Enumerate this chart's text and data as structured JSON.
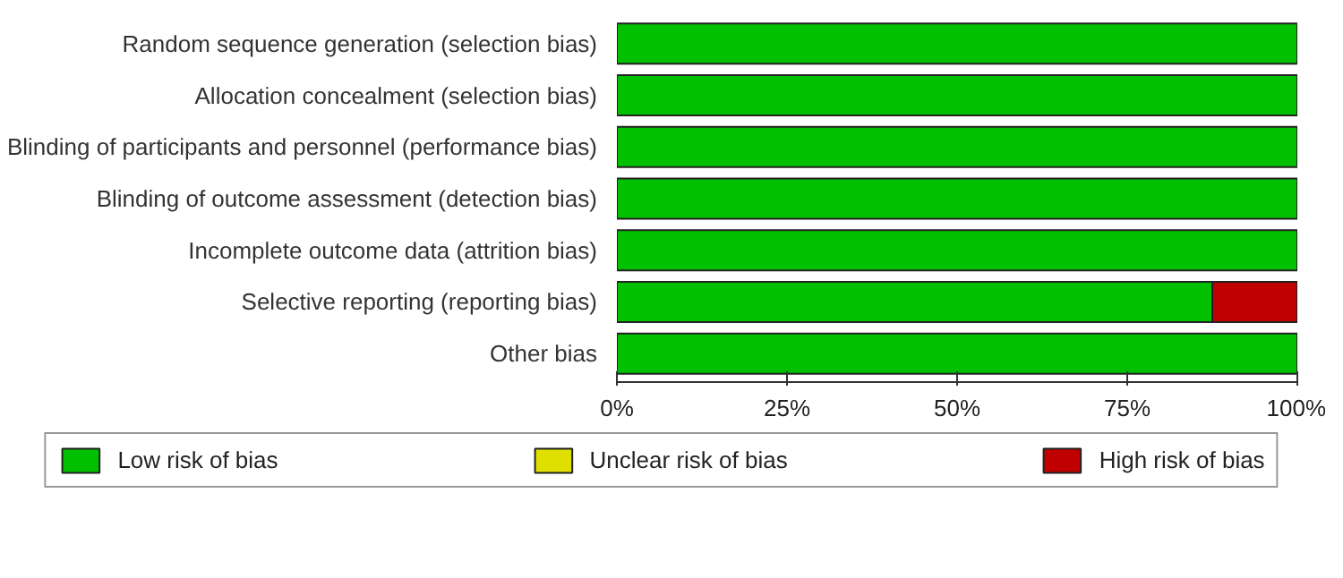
{
  "chart_data": {
    "type": "bar",
    "orientation": "horizontal",
    "stacked": true,
    "categories": [
      "Random sequence generation (selection bias)",
      "Allocation concealment (selection bias)",
      "Blinding of participants and personnel (performance bias)",
      "Blinding of outcome assessment (detection bias)",
      "Incomplete outcome data (attrition bias)",
      "Selective reporting (reporting bias)",
      "Other bias"
    ],
    "series": [
      {
        "name": "Low risk of bias",
        "color": "#00c000",
        "values": [
          100,
          100,
          100,
          100,
          100,
          87.5,
          100
        ]
      },
      {
        "name": "Unclear risk of bias",
        "color": "#e0e000",
        "values": [
          0,
          0,
          0,
          0,
          0,
          0,
          0
        ]
      },
      {
        "name": "High risk of bias",
        "color": "#c00000",
        "values": [
          0,
          0,
          0,
          0,
          0,
          12.5,
          0
        ]
      }
    ],
    "xlim": [
      0,
      100
    ],
    "xticks": [
      {
        "value": 0,
        "label": "0%"
      },
      {
        "value": 25,
        "label": "25%"
      },
      {
        "value": 50,
        "label": "50%"
      },
      {
        "value": 75,
        "label": "75%"
      },
      {
        "value": 100,
        "label": "100%"
      }
    ],
    "grid": false,
    "legend": "bottom"
  }
}
